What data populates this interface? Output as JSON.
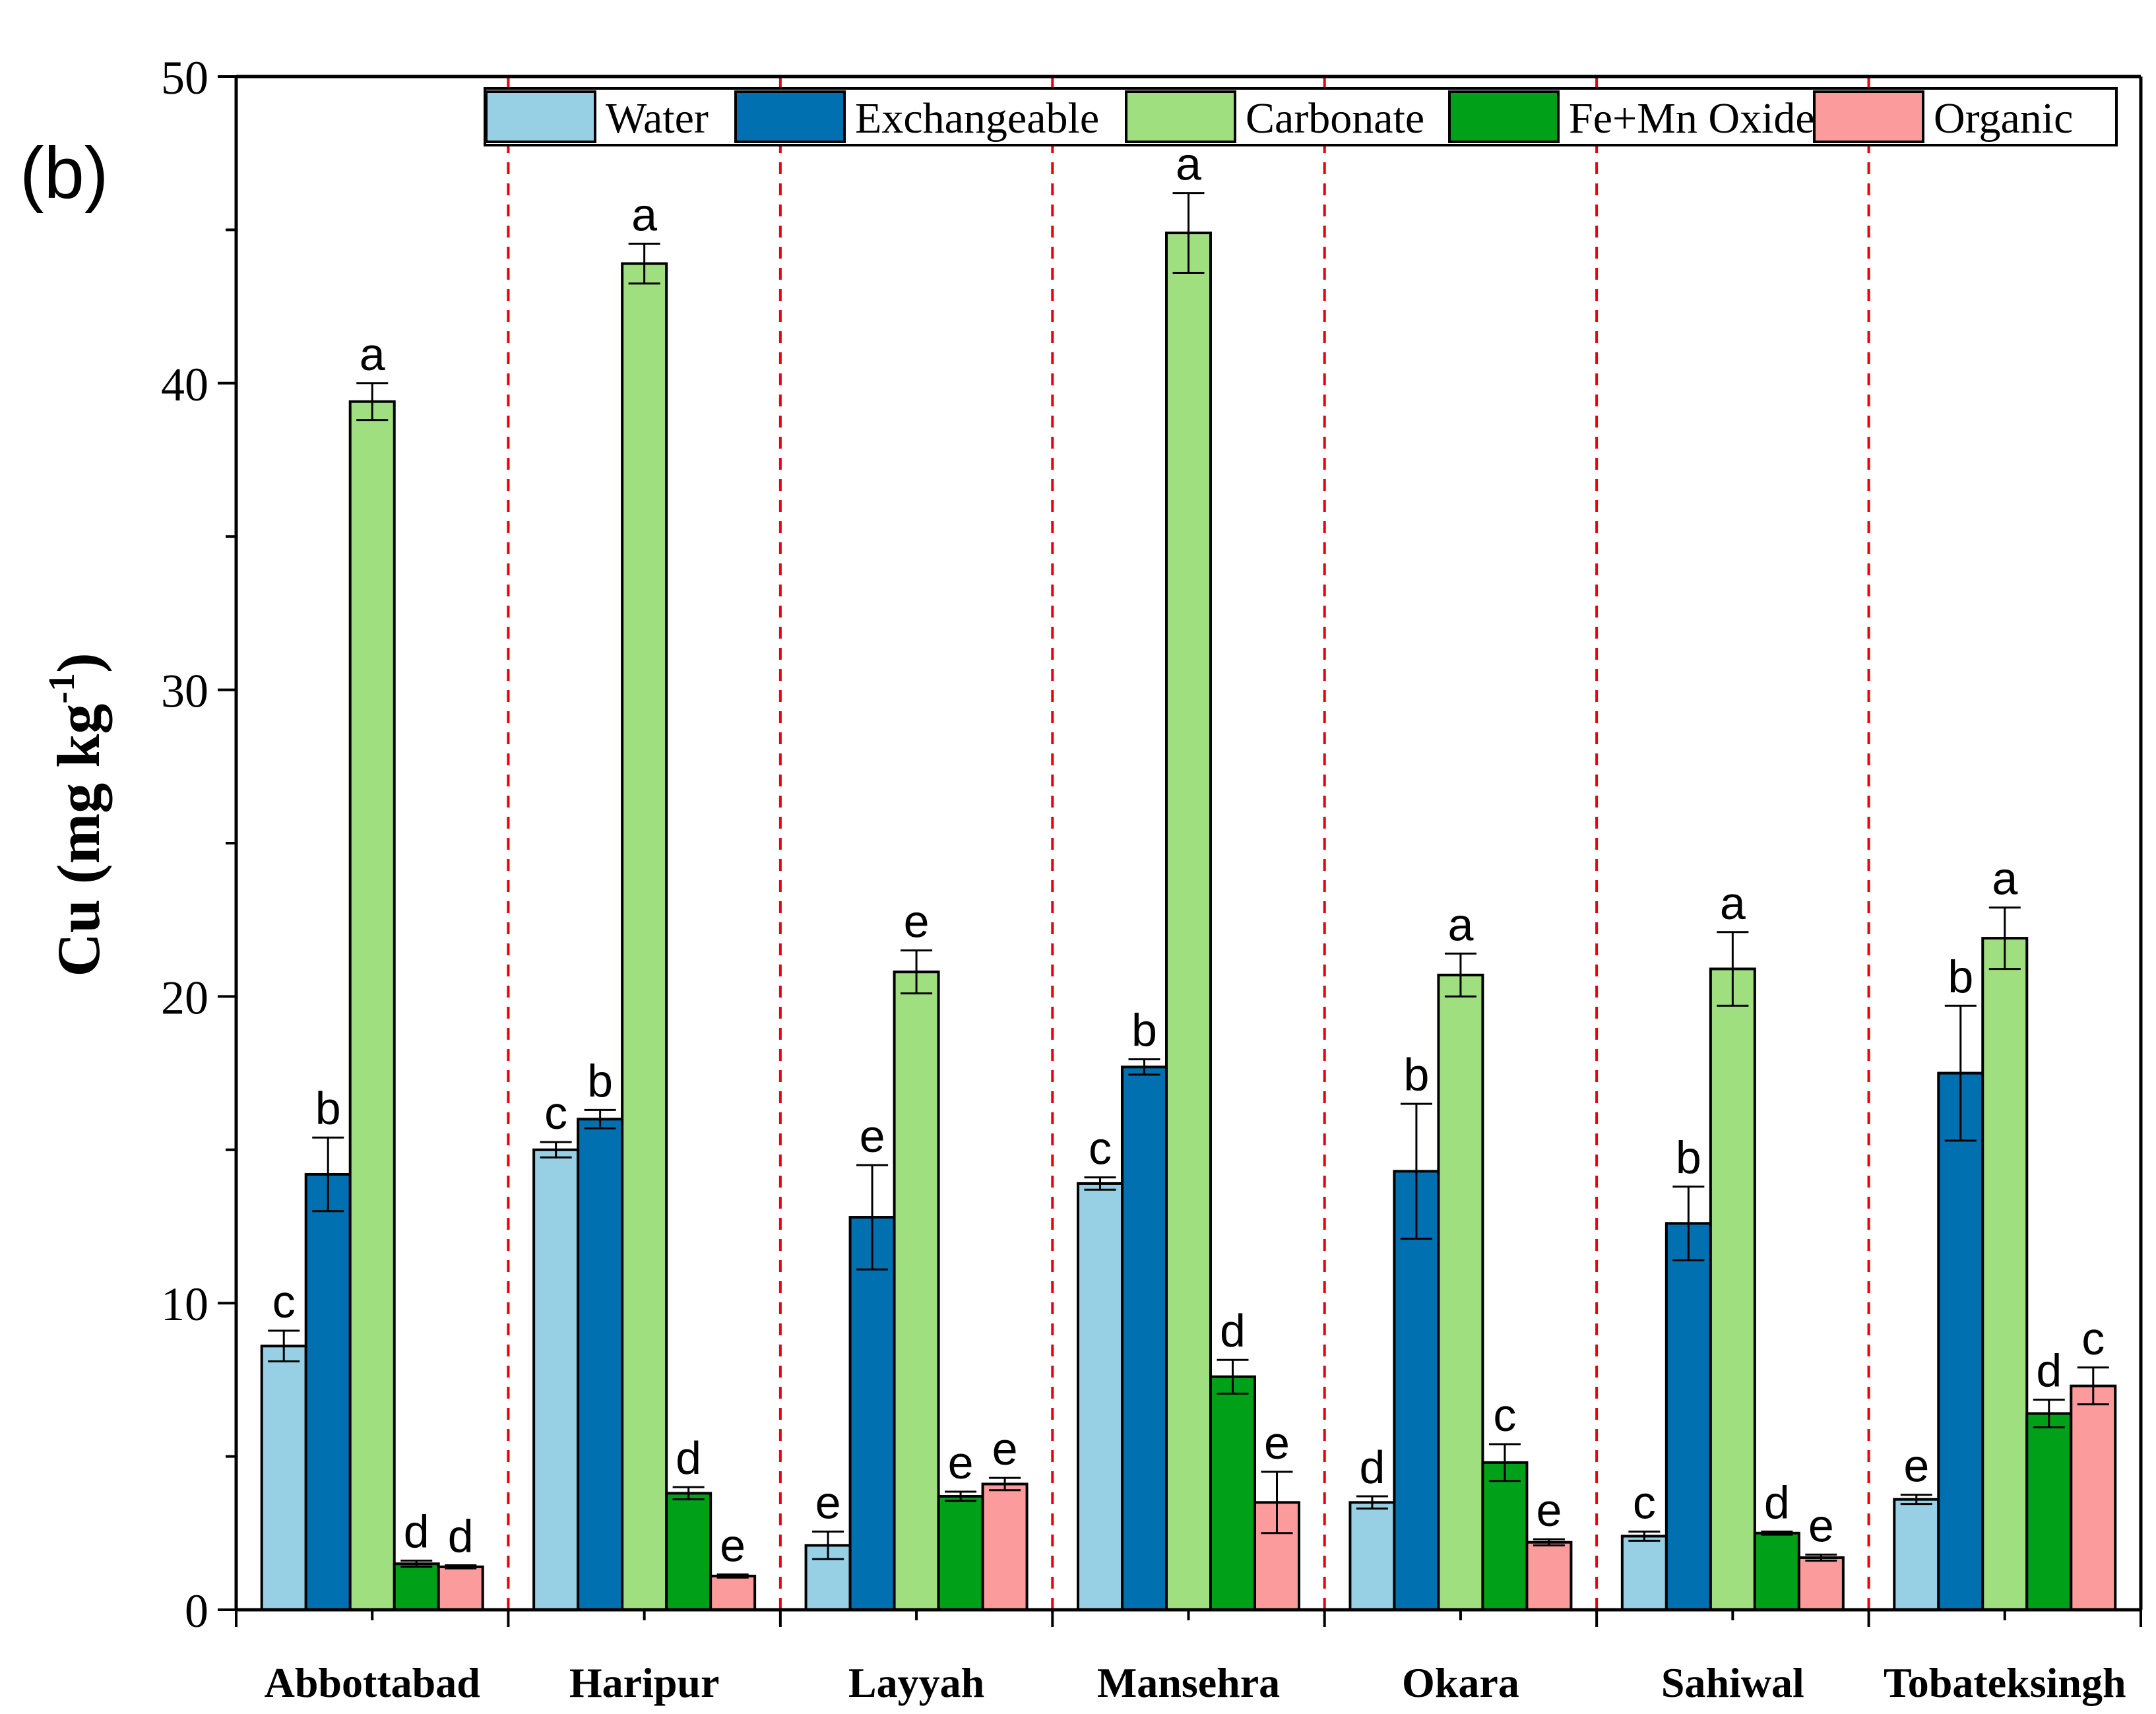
{
  "panel_label": "(b)",
  "chart_data": {
    "type": "bar",
    "title": "",
    "xlabel": "",
    "ylabel": "Cu (mg kg",
    "ylabel_superscript": "-1",
    "ylabel_close": ")",
    "ylim": [
      0,
      50
    ],
    "yticks": [
      0,
      10,
      20,
      30,
      40,
      50
    ],
    "grid": false,
    "legend_position": "top-right",
    "categories": [
      "Abbottabad",
      "Haripur",
      "Layyah",
      "Mansehra",
      "Okara",
      "Sahiwal",
      "Tobateksingh"
    ],
    "series": [
      {
        "name": "Water",
        "color": "#97cfe4",
        "values": [
          8.6,
          15.0,
          2.1,
          13.9,
          3.5,
          2.4,
          3.6
        ],
        "errors": [
          0.5,
          0.25,
          0.45,
          0.2,
          0.2,
          0.15,
          0.15
        ],
        "letters": [
          "c",
          "c",
          "e",
          "c",
          "d",
          "c",
          "e"
        ]
      },
      {
        "name": "Exchangeable",
        "color": "#0070b0",
        "values": [
          14.2,
          16.0,
          12.8,
          17.7,
          14.3,
          12.6,
          17.5
        ],
        "errors": [
          1.2,
          0.3,
          1.7,
          0.25,
          2.2,
          1.2,
          2.2
        ],
        "letters": [
          "b",
          "b",
          "e",
          "b",
          "b",
          "b",
          "b"
        ]
      },
      {
        "name": "Carbonate",
        "color": "#a0df80",
        "values": [
          39.4,
          43.9,
          20.8,
          44.9,
          20.7,
          20.9,
          21.9
        ],
        "errors": [
          0.6,
          0.65,
          0.7,
          1.3,
          0.7,
          1.2,
          1.0
        ],
        "letters": [
          "a",
          "a",
          "e",
          "a",
          "a",
          "a",
          "a"
        ]
      },
      {
        "name": "Fe+Mn Oxide",
        "color": "#00a118",
        "values": [
          1.5,
          3.8,
          3.7,
          7.6,
          4.8,
          2.5,
          6.4
        ],
        "errors": [
          0.1,
          0.2,
          0.15,
          0.55,
          0.6,
          0.05,
          0.45
        ],
        "letters": [
          "d",
          "d",
          "e",
          "d",
          "c",
          "d",
          "d"
        ]
      },
      {
        "name": "Organic",
        "color": "#fb9b9b",
        "values": [
          1.4,
          1.1,
          4.1,
          3.5,
          2.2,
          1.7,
          7.3
        ],
        "errors": [
          0.05,
          0.05,
          0.2,
          1.0,
          0.1,
          0.1,
          0.6
        ],
        "letters": [
          "d",
          "e",
          "e",
          "e",
          "e",
          "e",
          "c"
        ]
      }
    ]
  }
}
